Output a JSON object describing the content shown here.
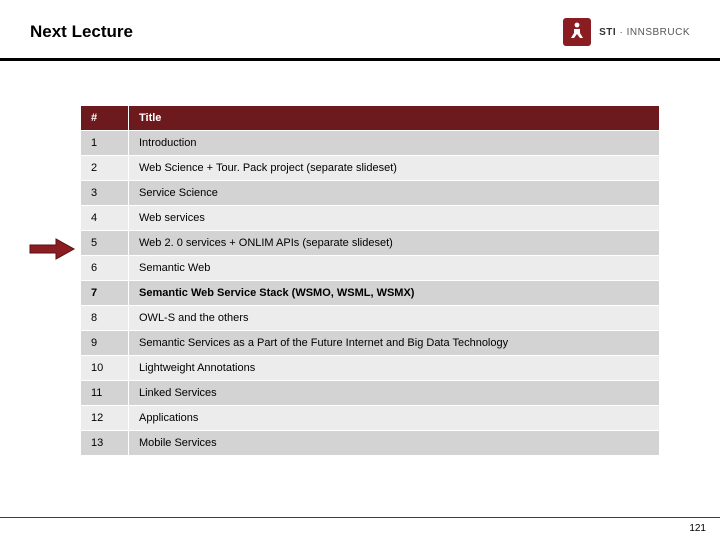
{
  "header": {
    "title": "Next Lecture",
    "logo": {
      "brand": "STI",
      "sep": " · ",
      "city": "INNSBRUCK"
    }
  },
  "table": {
    "header_bg": "#6d1a1f",
    "header_fg": "#ffffff",
    "row_odd_bg": "#d3d3d3",
    "row_even_bg": "#ececec",
    "columns": [
      "#",
      "Title"
    ],
    "highlight_row": 7,
    "rows": [
      {
        "num": "1",
        "title": "Introduction"
      },
      {
        "num": "2",
        "title": "Web Science + Tour. Pack project (separate slideset)"
      },
      {
        "num": "3",
        "title": "Service Science"
      },
      {
        "num": "4",
        "title": "Web services"
      },
      {
        "num": "5",
        "title": "Web 2. 0 services + ONLIM APIs (separate slideset)"
      },
      {
        "num": "6",
        "title": "Semantic Web"
      },
      {
        "num": "7",
        "title": "Semantic Web Service Stack (WSMO, WSML, WSMX)"
      },
      {
        "num": "8",
        "title": "OWL-S and the others"
      },
      {
        "num": "9",
        "title": "Semantic Services as a Part of the Future Internet and Big Data Technology"
      },
      {
        "num": "10",
        "title": "Lightweight Annotations"
      },
      {
        "num": "11",
        "title": "Linked Services"
      },
      {
        "num": "12",
        "title": "Applications"
      },
      {
        "num": "13",
        "title": "Mobile Services"
      }
    ]
  },
  "arrow": {
    "fill": "#8a1d22",
    "stroke": "#5a0f12"
  },
  "footer": {
    "page_number": "121",
    "line_color": "#8a1d22"
  }
}
